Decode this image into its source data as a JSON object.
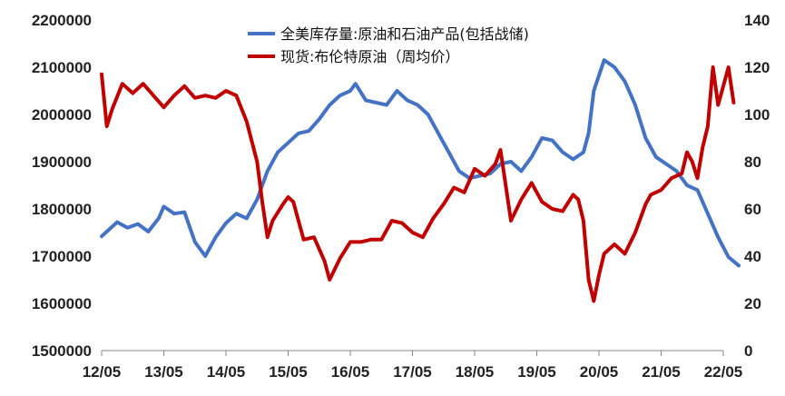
{
  "chart_data": {
    "type": "line",
    "x_ticks": [
      "12/05",
      "13/05",
      "14/05",
      "15/05",
      "16/05",
      "17/05",
      "18/05",
      "19/05",
      "20/05",
      "21/05",
      "22/05"
    ],
    "y_left": {
      "ticks": [
        "1500000",
        "1600000",
        "1700000",
        "1800000",
        "1900000",
        "2000000",
        "2100000",
        "2200000"
      ],
      "ylim": [
        1500000,
        2200000
      ]
    },
    "y_right": {
      "ticks": [
        "0",
        "20",
        "40",
        "60",
        "80",
        "100",
        "120",
        "140"
      ],
      "ylim": [
        0,
        140
      ]
    },
    "legend_position": "top-center",
    "grid": false,
    "series": [
      {
        "name": "全美库存量:原油和石油产品(包括战储)",
        "axis": "left",
        "color": "#4472C4",
        "points": [
          [
            "2012-05",
            1742000
          ],
          [
            "2012-08",
            1772000
          ],
          [
            "2012-10",
            1760000
          ],
          [
            "2012-12",
            1768000
          ],
          [
            "2013-02",
            1752000
          ],
          [
            "2013-04",
            1780000
          ],
          [
            "2013-05",
            1805000
          ],
          [
            "2013-07",
            1790000
          ],
          [
            "2013-09",
            1793000
          ],
          [
            "2013-11",
            1730000
          ],
          [
            "2014-01",
            1700000
          ],
          [
            "2014-03",
            1740000
          ],
          [
            "2014-05",
            1770000
          ],
          [
            "2014-07",
            1790000
          ],
          [
            "2014-09",
            1780000
          ],
          [
            "2014-11",
            1820000
          ],
          [
            "2015-01",
            1880000
          ],
          [
            "2015-03",
            1920000
          ],
          [
            "2015-05",
            1940000
          ],
          [
            "2015-07",
            1960000
          ],
          [
            "2015-09",
            1965000
          ],
          [
            "2015-11",
            1990000
          ],
          [
            "2016-01",
            2020000
          ],
          [
            "2016-03",
            2040000
          ],
          [
            "2016-05",
            2050000
          ],
          [
            "2016-06",
            2065000
          ],
          [
            "2016-08",
            2030000
          ],
          [
            "2016-10",
            2025000
          ],
          [
            "2016-12",
            2020000
          ],
          [
            "2017-02",
            2050000
          ],
          [
            "2017-04",
            2030000
          ],
          [
            "2017-06",
            2020000
          ],
          [
            "2017-08",
            2000000
          ],
          [
            "2017-10",
            1960000
          ],
          [
            "2017-12",
            1920000
          ],
          [
            "2018-02",
            1880000
          ],
          [
            "2018-04",
            1865000
          ],
          [
            "2018-06",
            1870000
          ],
          [
            "2018-08",
            1875000
          ],
          [
            "2018-10",
            1895000
          ],
          [
            "2018-12",
            1900000
          ],
          [
            "2019-02",
            1880000
          ],
          [
            "2019-04",
            1910000
          ],
          [
            "2019-06",
            1950000
          ],
          [
            "2019-08",
            1945000
          ],
          [
            "2019-10",
            1920000
          ],
          [
            "2019-12",
            1905000
          ],
          [
            "2020-02",
            1920000
          ],
          [
            "2020-03",
            1960000
          ],
          [
            "2020-04",
            2050000
          ],
          [
            "2020-06",
            2115000
          ],
          [
            "2020-08",
            2100000
          ],
          [
            "2020-10",
            2070000
          ],
          [
            "2020-12",
            2020000
          ],
          [
            "2021-02",
            1950000
          ],
          [
            "2021-04",
            1910000
          ],
          [
            "2021-06",
            1895000
          ],
          [
            "2021-08",
            1880000
          ],
          [
            "2021-10",
            1850000
          ],
          [
            "2021-12",
            1840000
          ],
          [
            "2022-02",
            1790000
          ],
          [
            "2022-04",
            1740000
          ],
          [
            "2022-06",
            1698000
          ],
          [
            "2022-08",
            1680000
          ]
        ]
      },
      {
        "name": "现货:布伦特原油（周均价）",
        "axis": "right",
        "color": "#C00000",
        "points": [
          [
            "2012-05",
            117
          ],
          [
            "2012-06",
            95
          ],
          [
            "2012-07",
            102
          ],
          [
            "2012-09",
            113
          ],
          [
            "2012-11",
            109
          ],
          [
            "2013-01",
            113
          ],
          [
            "2013-03",
            108
          ],
          [
            "2013-05",
            103
          ],
          [
            "2013-07",
            108
          ],
          [
            "2013-09",
            112
          ],
          [
            "2013-11",
            107
          ],
          [
            "2014-01",
            108
          ],
          [
            "2014-03",
            107
          ],
          [
            "2014-05",
            110
          ],
          [
            "2014-07",
            108
          ],
          [
            "2014-09",
            97
          ],
          [
            "2014-11",
            80
          ],
          [
            "2014-12",
            63
          ],
          [
            "2015-01",
            48
          ],
          [
            "2015-02",
            55
          ],
          [
            "2015-04",
            62
          ],
          [
            "2015-05",
            65
          ],
          [
            "2015-06",
            63
          ],
          [
            "2015-07",
            55
          ],
          [
            "2015-08",
            47
          ],
          [
            "2015-10",
            48
          ],
          [
            "2015-12",
            38
          ],
          [
            "2016-01",
            30
          ],
          [
            "2016-03",
            39
          ],
          [
            "2016-05",
            46
          ],
          [
            "2016-07",
            46
          ],
          [
            "2016-09",
            47
          ],
          [
            "2016-11",
            47
          ],
          [
            "2017-01",
            55
          ],
          [
            "2017-03",
            54
          ],
          [
            "2017-05",
            50
          ],
          [
            "2017-07",
            48
          ],
          [
            "2017-09",
            56
          ],
          [
            "2017-11",
            62
          ],
          [
            "2018-01",
            69
          ],
          [
            "2018-03",
            67
          ],
          [
            "2018-05",
            77
          ],
          [
            "2018-07",
            74
          ],
          [
            "2018-09",
            79
          ],
          [
            "2018-10",
            85
          ],
          [
            "2018-12",
            55
          ],
          [
            "2019-02",
            64
          ],
          [
            "2019-04",
            71
          ],
          [
            "2019-06",
            63
          ],
          [
            "2019-08",
            60
          ],
          [
            "2019-10",
            59
          ],
          [
            "2019-12",
            66
          ],
          [
            "2020-01",
            64
          ],
          [
            "2020-02",
            55
          ],
          [
            "2020-03",
            30
          ],
          [
            "2020-04",
            21
          ],
          [
            "2020-05",
            32
          ],
          [
            "2020-06",
            41
          ],
          [
            "2020-08",
            45
          ],
          [
            "2020-10",
            41
          ],
          [
            "2020-12",
            50
          ],
          [
            "2021-02",
            62
          ],
          [
            "2021-03",
            66
          ],
          [
            "2021-05",
            68
          ],
          [
            "2021-07",
            73
          ],
          [
            "2021-09",
            75
          ],
          [
            "2021-10",
            84
          ],
          [
            "2021-11",
            80
          ],
          [
            "2021-12",
            73
          ],
          [
            "2022-01",
            86
          ],
          [
            "2022-02",
            95
          ],
          [
            "2022-03",
            120
          ],
          [
            "2022-04",
            104
          ],
          [
            "2022-05",
            112
          ],
          [
            "2022-06",
            120
          ],
          [
            "2022-07",
            105
          ]
        ]
      }
    ]
  }
}
